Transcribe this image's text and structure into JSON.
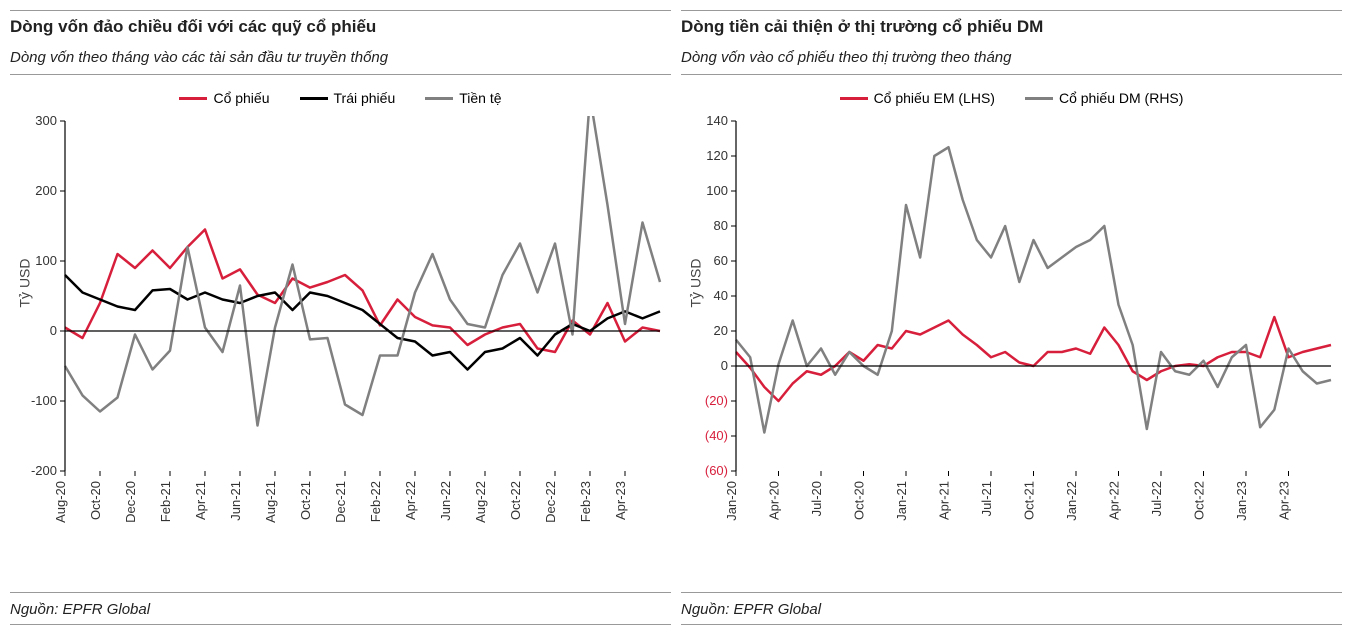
{
  "left": {
    "title": "Dòng vốn đảo chiều đối với các quỹ cổ phiếu",
    "subtitle": "Dòng vốn theo tháng vào các tài sản đầu tư truyền thống",
    "source": "Nguồn: EPFR Global",
    "ylabel": "Tỷ USD",
    "chart": {
      "type": "line",
      "ylim": [
        -200,
        300
      ],
      "ytick_step": 100,
      "yticks": [
        -200,
        -100,
        0,
        100,
        200,
        300
      ],
      "x_labels": [
        "Aug-20",
        "Oct-20",
        "Dec-20",
        "Feb-21",
        "Apr-21",
        "Jun-21",
        "Aug-21",
        "Oct-21",
        "Dec-21",
        "Feb-22",
        "Apr-22",
        "Jun-22",
        "Aug-22",
        "Oct-22",
        "Dec-22",
        "Feb-23",
        "Apr-23"
      ],
      "x_label_each": 2,
      "background_color": "#ffffff",
      "axis_color": "#000000",
      "axis_width": 1.2,
      "line_width": 2.5,
      "label_fontsize": 13,
      "legend": [
        {
          "label": "Cổ phiếu",
          "color": "#d71f3c"
        },
        {
          "label": "Trái phiếu",
          "color": "#000000"
        },
        {
          "label": "Tiền tệ",
          "color": "#808080"
        }
      ],
      "series": {
        "co_phieu": {
          "color": "#d71f3c",
          "values": [
            5,
            -10,
            40,
            110,
            90,
            115,
            90,
            120,
            145,
            75,
            88,
            52,
            40,
            75,
            62,
            70,
            80,
            58,
            8,
            45,
            20,
            8,
            5,
            -20,
            -5,
            5,
            10,
            -25,
            -30,
            15,
            -5,
            40,
            -15,
            5,
            0
          ]
        },
        "trai_phieu": {
          "color": "#000000",
          "values": [
            80,
            55,
            45,
            35,
            30,
            58,
            60,
            45,
            55,
            45,
            40,
            50,
            55,
            30,
            55,
            50,
            40,
            30,
            10,
            -10,
            -15,
            -35,
            -30,
            -55,
            -30,
            -25,
            -10,
            -35,
            -5,
            10,
            0,
            18,
            28,
            18,
            28
          ]
        },
        "tien_te": {
          "color": "#808080",
          "values": [
            -50,
            -92,
            -115,
            -95,
            -5,
            -55,
            -28,
            120,
            5,
            -30,
            65,
            -135,
            5,
            95,
            -12,
            -10,
            -105,
            -120,
            -35,
            -35,
            55,
            110,
            45,
            10,
            5,
            80,
            125,
            55,
            125,
            -5,
            335,
            180,
            10,
            155,
            70
          ]
        }
      }
    }
  },
  "right": {
    "title": "Dòng tiền cải thiện ở thị trường cổ phiếu DM",
    "subtitle": "Dòng vốn vào cổ phiếu theo thị trường theo tháng",
    "source": "Nguồn: EPFR Global",
    "ylabel": "Tỷ USD",
    "chart": {
      "type": "line",
      "ylim": [
        -60,
        140
      ],
      "ytick_step": 20,
      "yticks": [
        -60,
        -40,
        -20,
        0,
        20,
        40,
        60,
        80,
        100,
        120,
        140
      ],
      "neg_red_ticks": true,
      "x_labels": [
        "Jan-20",
        "Apr-20",
        "Jul-20",
        "Oct-20",
        "Jan-21",
        "Apr-21",
        "Jul-21",
        "Oct-21",
        "Jan-22",
        "Apr-22",
        "Jul-22",
        "Oct-22",
        "Jan-23",
        "Apr-23"
      ],
      "x_label_each": 3,
      "background_color": "#ffffff",
      "axis_color": "#000000",
      "axis_width": 1.2,
      "line_width": 2.5,
      "label_fontsize": 13,
      "legend": [
        {
          "label": "Cổ phiếu EM (LHS)",
          "color": "#d71f3c"
        },
        {
          "label": "Cổ phiếu DM (RHS)",
          "color": "#808080"
        }
      ],
      "series": {
        "em": {
          "color": "#d71f3c",
          "values": [
            8,
            -1,
            -12,
            -20,
            -10,
            -3,
            -5,
            0,
            8,
            3,
            12,
            10,
            20,
            18,
            22,
            26,
            18,
            12,
            5,
            8,
            2,
            0,
            8,
            8,
            10,
            7,
            22,
            12,
            -3,
            -8,
            -3,
            0,
            1,
            0,
            5,
            8,
            8,
            5,
            28,
            5,
            8,
            10,
            12
          ]
        },
        "dm": {
          "color": "#808080",
          "values": [
            15,
            5,
            -38,
            1,
            26,
            0,
            10,
            -5,
            8,
            0,
            -5,
            20,
            92,
            62,
            120,
            125,
            95,
            72,
            62,
            80,
            48,
            72,
            56,
            62,
            68,
            72,
            80,
            35,
            12,
            -36,
            8,
            -3,
            -5,
            3,
            -12,
            5,
            12,
            -35,
            -25,
            10,
            -3,
            -10,
            -8
          ]
        }
      }
    }
  }
}
